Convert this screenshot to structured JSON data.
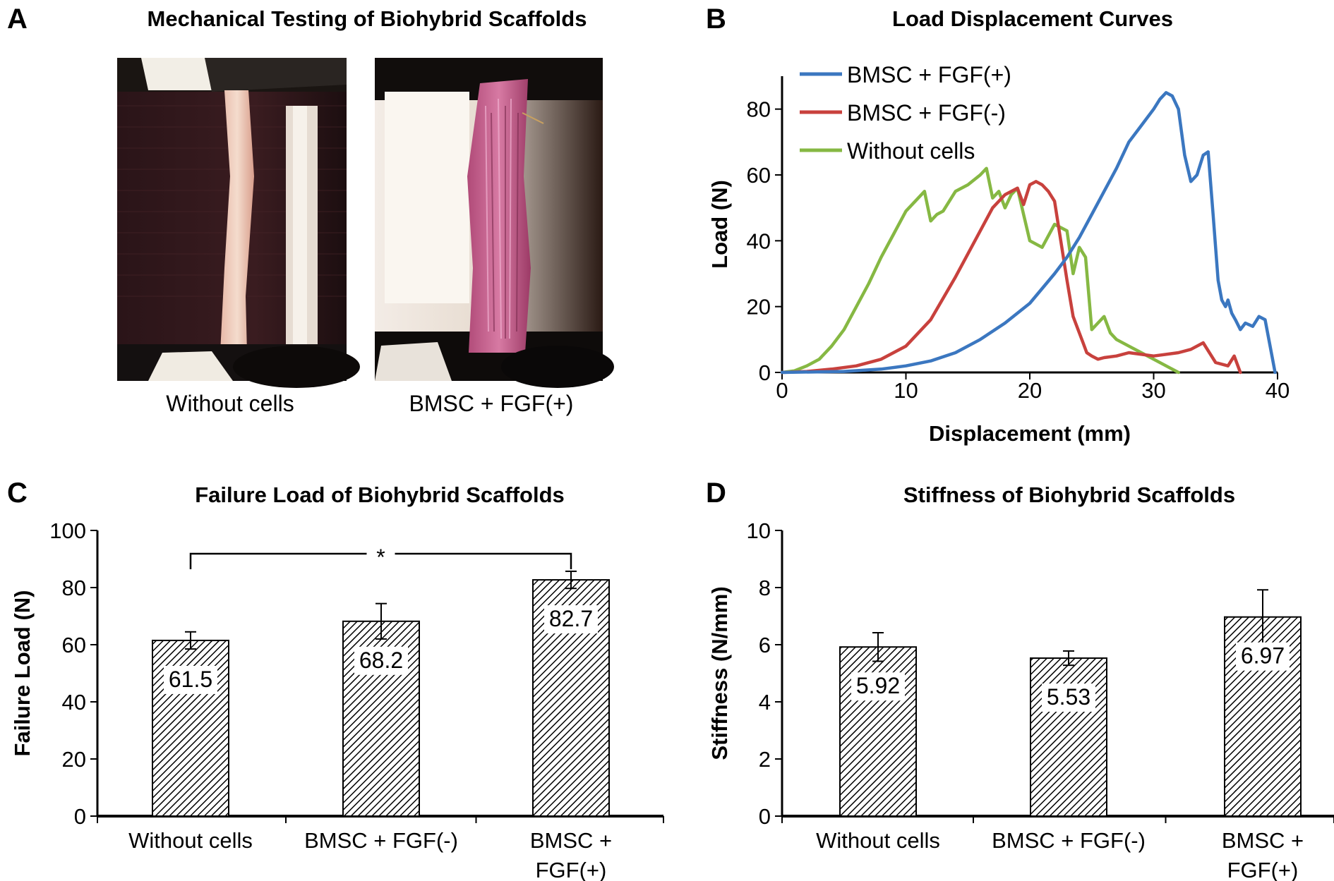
{
  "panel_a": {
    "letter": "A",
    "title": "Mechanical Testing of Biohybrid Scaffolds",
    "photos": [
      {
        "caption": "Without cells"
      },
      {
        "caption": "BMSC + FGF(+)"
      }
    ]
  },
  "colors": {
    "blue": "#3b77c0",
    "red": "#c8413d",
    "green": "#86b843",
    "hatch": "#000000"
  },
  "chart_data": [
    {
      "panel": "B",
      "type": "line",
      "title": "Load Displacement Curves",
      "xlabel": "Displacement (mm)",
      "ylabel": "Load (N)",
      "xlim": [
        0,
        40
      ],
      "ylim": [
        0,
        90
      ],
      "xticks": [
        0,
        10,
        20,
        30,
        40
      ],
      "yticks": [
        0,
        20,
        40,
        60,
        80
      ],
      "legend_position": "top-left",
      "series": [
        {
          "name": "BMSC + FGF(+)",
          "color": "#3b77c0",
          "x": [
            0,
            5,
            8,
            10,
            12,
            14,
            16,
            18,
            20,
            22,
            23,
            24,
            25,
            26,
            27,
            28,
            29,
            30,
            30.5,
            31,
            31.5,
            32,
            32.5,
            33,
            33.5,
            34,
            34.4,
            34.8,
            35.2,
            35.5,
            35.8,
            36,
            36.3,
            36.6,
            37,
            37.4,
            38,
            38.5,
            39,
            39.3,
            39.6,
            39.8
          ],
          "y": [
            0,
            0.3,
            1,
            2,
            3.5,
            6,
            10,
            15,
            21,
            30,
            35,
            41,
            48,
            55,
            62,
            70,
            75,
            80,
            83,
            85,
            84,
            80,
            66,
            58,
            60,
            66,
            67,
            48,
            28,
            22,
            20,
            22,
            18,
            16,
            13,
            15,
            14,
            17,
            16,
            10,
            4,
            0
          ]
        },
        {
          "name": "BMSC + FGF(-)",
          "color": "#c8413d",
          "x": [
            0,
            2,
            4,
            6,
            8,
            10,
            12,
            14,
            16,
            17,
            18,
            19,
            19.5,
            20,
            20.5,
            21,
            21.5,
            22,
            22.5,
            23,
            23.5,
            24,
            24.3,
            24.6,
            25,
            25.5,
            26,
            27,
            28,
            30,
            32,
            33,
            34,
            35,
            36,
            36.5,
            37
          ],
          "y": [
            0,
            0.3,
            1,
            2,
            4,
            8,
            16,
            29,
            43,
            50,
            54,
            56,
            51,
            57,
            58,
            57,
            55,
            52,
            40,
            28,
            17,
            12,
            9,
            6,
            5,
            4,
            4.5,
            5,
            6,
            5,
            6,
            7,
            9,
            3,
            2,
            5,
            0
          ]
        },
        {
          "name": "Without cells",
          "color": "#86b843",
          "x": [
            0,
            1,
            2,
            3,
            4,
            5,
            6,
            7,
            8,
            9,
            10,
            11,
            11.5,
            12,
            12.5,
            13,
            14,
            15,
            16,
            16.5,
            17,
            17.5,
            18,
            18.5,
            19,
            19.5,
            20,
            21,
            22,
            23,
            23.5,
            24,
            24.5,
            25,
            25.5,
            26,
            26.5,
            27,
            28,
            29,
            30,
            31,
            32
          ],
          "y": [
            0,
            0.5,
            2,
            4,
            8,
            13,
            20,
            27,
            35,
            42,
            49,
            53,
            55,
            46,
            48,
            49,
            55,
            57,
            60,
            62,
            53,
            55,
            50,
            54,
            56,
            48,
            40,
            38,
            45,
            43,
            30,
            38,
            35,
            13,
            15,
            17,
            12,
            10,
            8,
            6,
            4,
            2,
            0
          ]
        }
      ]
    },
    {
      "panel": "C",
      "type": "bar",
      "title": "Failure Load of Biohybrid Scaffolds",
      "ylabel": "Failure Load (N)",
      "ylim": [
        0,
        100
      ],
      "yticks": [
        0,
        20,
        40,
        60,
        80,
        100
      ],
      "categories": [
        [
          "Without cells"
        ],
        [
          "BMSC + FGF(-)"
        ],
        [
          "BMSC +",
          "FGF(+)"
        ]
      ],
      "values": [
        61.5,
        68.2,
        82.7
      ],
      "value_labels": [
        "61.5",
        "68.2",
        "82.7"
      ],
      "errors": [
        3.0,
        6.2,
        3.0
      ],
      "significance": {
        "from": 0,
        "to": 2,
        "label": "*"
      },
      "fill": "diagonal hatch"
    },
    {
      "panel": "D",
      "type": "bar",
      "title": "Stiffness of Biohybrid Scaffolds",
      "ylabel": "Stiffness (N/mm)",
      "ylim": [
        0,
        10
      ],
      "yticks": [
        0,
        2,
        4,
        6,
        8,
        10
      ],
      "categories": [
        [
          "Without cells"
        ],
        [
          "BMSC + FGF(-)"
        ],
        [
          "BMSC +",
          "FGF(+)"
        ]
      ],
      "values": [
        5.92,
        5.53,
        6.97
      ],
      "value_labels": [
        "5.92",
        "5.53",
        "6.97"
      ],
      "errors": [
        0.5,
        0.25,
        0.95
      ],
      "fill": "diagonal hatch"
    }
  ]
}
